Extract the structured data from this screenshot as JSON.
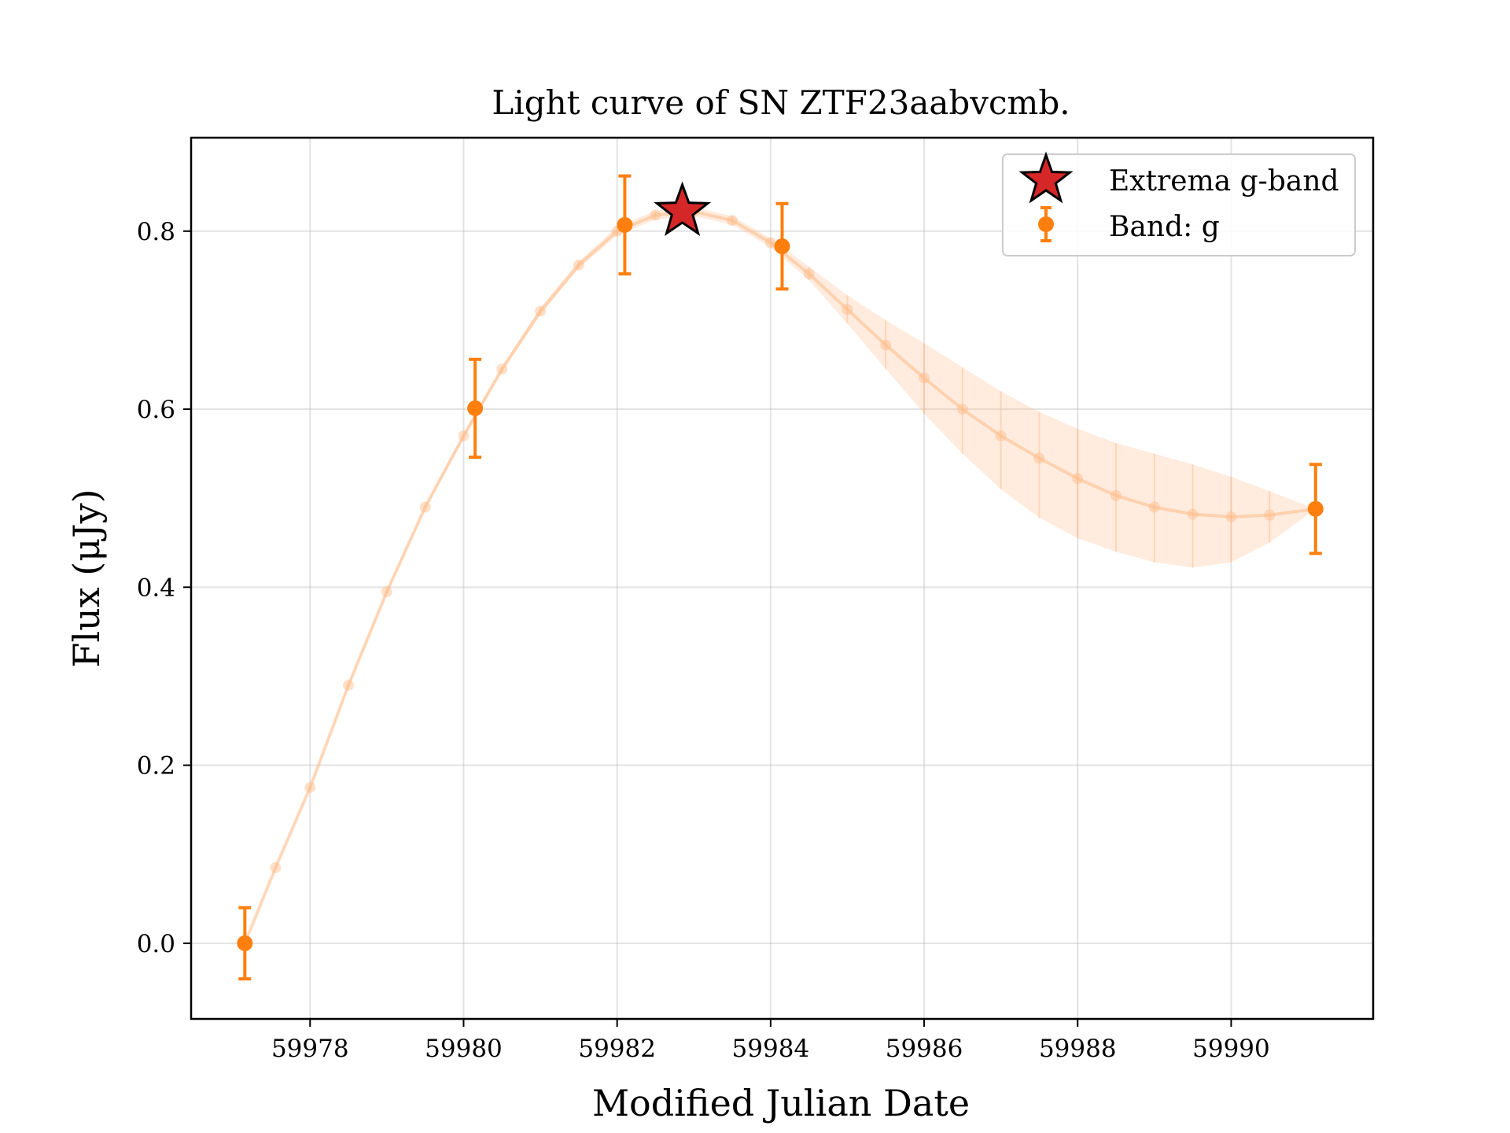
{
  "chart_data": {
    "type": "scatter",
    "title": "Light curve of SN ZTF23aabvcmb.",
    "xlabel": "Modified Julian Date",
    "ylabel": "Flux (μJy)",
    "xlim": [
      59976.45,
      59991.85
    ],
    "ylim": [
      -0.085,
      0.905
    ],
    "xticks": [
      59978,
      59980,
      59982,
      59984,
      59986,
      59988,
      59990
    ],
    "xtick_labels": [
      "59978",
      "59980",
      "59982",
      "59984",
      "59986",
      "59988",
      "59990"
    ],
    "yticks": [
      0.0,
      0.2,
      0.4,
      0.6,
      0.8
    ],
    "ytick_labels": [
      "0.0",
      "0.2",
      "0.4",
      "0.6",
      "0.8"
    ],
    "grid": true,
    "legend_position": "top-right",
    "series": [
      {
        "name": "Band: g",
        "color": "#ff7f0e",
        "x": [
          59977.15,
          59980.15,
          59982.1,
          59984.15,
          59991.1
        ],
        "y": [
          0.0,
          0.601,
          0.807,
          0.783,
          0.488
        ],
        "yerr": [
          0.04,
          0.055,
          0.055,
          0.048,
          0.05
        ]
      },
      {
        "name": "Extrema g-band",
        "color": "#d62728",
        "marker": "star",
        "x": [
          59982.85
        ],
        "y": [
          0.822
        ]
      }
    ],
    "fit_curve": {
      "color": "#ffbb88",
      "x": [
        59977.15,
        59977.55,
        59978.0,
        59978.5,
        59979.0,
        59979.5,
        59980.0,
        59980.5,
        59981.0,
        59981.5,
        59982.0,
        59982.5,
        59983.0,
        59983.5,
        59984.0,
        59984.5,
        59985.0,
        59985.5,
        59986.0,
        59986.5,
        59987.0,
        59987.5,
        59988.0,
        59988.5,
        59989.0,
        59989.5,
        59990.0,
        59990.5,
        59991.1
      ],
      "y": [
        0.0,
        0.085,
        0.175,
        0.29,
        0.395,
        0.49,
        0.57,
        0.645,
        0.71,
        0.762,
        0.8,
        0.818,
        0.822,
        0.812,
        0.787,
        0.752,
        0.712,
        0.672,
        0.635,
        0.6,
        0.57,
        0.545,
        0.522,
        0.503,
        0.49,
        0.482,
        0.479,
        0.481,
        0.488
      ],
      "y_upper": [
        0.0,
        0.086,
        0.176,
        0.292,
        0.397,
        0.492,
        0.573,
        0.648,
        0.714,
        0.766,
        0.805,
        0.823,
        0.827,
        0.817,
        0.792,
        0.76,
        0.728,
        0.7,
        0.674,
        0.647,
        0.62,
        0.597,
        0.578,
        0.562,
        0.55,
        0.538,
        0.524,
        0.508,
        0.488
      ],
      "y_lower": [
        0.0,
        0.084,
        0.174,
        0.288,
        0.393,
        0.488,
        0.567,
        0.642,
        0.706,
        0.758,
        0.795,
        0.813,
        0.817,
        0.807,
        0.782,
        0.745,
        0.696,
        0.645,
        0.595,
        0.55,
        0.51,
        0.478,
        0.455,
        0.44,
        0.428,
        0.422,
        0.428,
        0.45,
        0.488
      ]
    }
  }
}
